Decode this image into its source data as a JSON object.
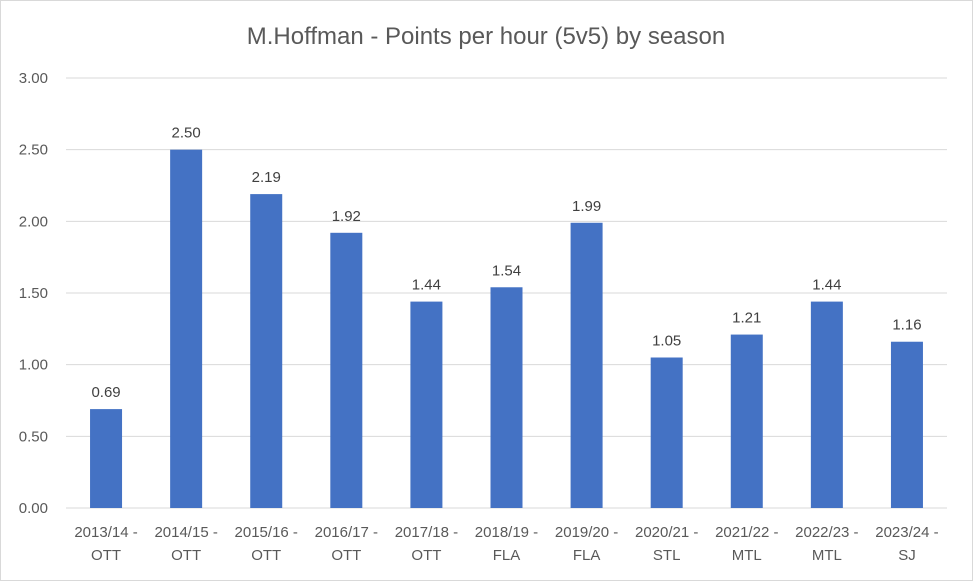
{
  "chart_data": {
    "type": "bar",
    "title": "M.Hoffman - Points per hour (5v5) by season",
    "categories": [
      [
        "2013/14 -",
        "OTT"
      ],
      [
        "2014/15 -",
        "OTT"
      ],
      [
        "2015/16 -",
        "OTT"
      ],
      [
        "2016/17 -",
        "OTT"
      ],
      [
        "2017/18 -",
        "OTT"
      ],
      [
        "2018/19 -",
        "FLA"
      ],
      [
        "2019/20 -",
        "FLA"
      ],
      [
        "2020/21 -",
        "STL"
      ],
      [
        "2021/22 -",
        "MTL"
      ],
      [
        "2022/23 -",
        "MTL"
      ],
      [
        "2023/24 -",
        "SJ"
      ]
    ],
    "values": [
      0.69,
      2.5,
      2.19,
      1.92,
      1.44,
      1.54,
      1.99,
      1.05,
      1.21,
      1.44,
      1.16
    ],
    "data_labels": [
      "0.69",
      "2.50",
      "2.19",
      "1.92",
      "1.44",
      "1.54",
      "1.99",
      "1.05",
      "1.21",
      "1.44",
      "1.16"
    ],
    "ylim": [
      0,
      3
    ],
    "yticks": [
      "0.00",
      "0.50",
      "1.00",
      "1.50",
      "2.00",
      "2.50",
      "3.00"
    ],
    "grid": true,
    "legend": "none",
    "bar_color": "#4472c4"
  }
}
